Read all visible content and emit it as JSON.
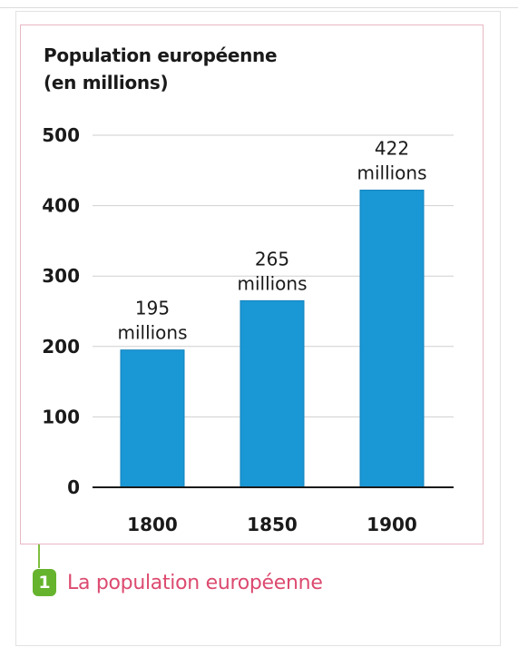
{
  "chart_data": {
    "type": "bar",
    "title": "Population européenne\n(en millions)",
    "categories": [
      "1800",
      "1850",
      "1900"
    ],
    "values": [
      195,
      265,
      422
    ],
    "value_labels": [
      "195\nmillions",
      "265\nmillions",
      "422\nmillions"
    ],
    "yticks": [
      0,
      100,
      200,
      300,
      400,
      500
    ],
    "ylim": [
      0,
      500
    ],
    "xlabel": "",
    "ylabel": "",
    "grid": true,
    "legend": "none",
    "colors": {
      "bar": "#1a97d5",
      "bar_edge": "#1282bb",
      "grid": "#cfcfcf",
      "axis": "#1a1a1a",
      "text": "#1a1a1a"
    }
  },
  "caption": {
    "number": "1",
    "text": "La population européenne",
    "number_color": "#66b32e",
    "text_color": "#dc4a6f"
  },
  "colors": {
    "frame_border": "#e9b7c3"
  }
}
